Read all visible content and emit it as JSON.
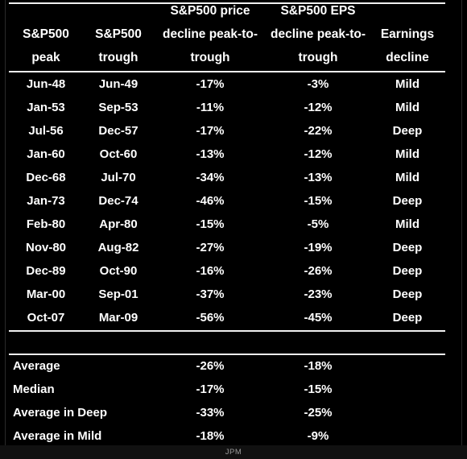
{
  "headers": {
    "peak": [
      "S&P500",
      "peak"
    ],
    "trough": [
      "S&P500",
      "trough"
    ],
    "price": [
      "S&P500 price",
      "decline peak-to-",
      "trough"
    ],
    "eps": [
      "S&P500 EPS",
      "decline peak-to-",
      "trough"
    ],
    "earnings": [
      "Earnings",
      "decline"
    ]
  },
  "rows": [
    {
      "peak": "Jun-48",
      "trough": "Jun-49",
      "price": "-17%",
      "eps": "-3%",
      "earnings": "Mild"
    },
    {
      "peak": "Jan-53",
      "trough": "Sep-53",
      "price": "-11%",
      "eps": "-12%",
      "earnings": "Mild"
    },
    {
      "peak": "Jul-56",
      "trough": "Dec-57",
      "price": "-17%",
      "eps": "-22%",
      "earnings": "Deep"
    },
    {
      "peak": "Jan-60",
      "trough": "Oct-60",
      "price": "-13%",
      "eps": "-12%",
      "earnings": "Mild"
    },
    {
      "peak": "Dec-68",
      "trough": "Jul-70",
      "price": "-34%",
      "eps": "-13%",
      "earnings": "Mild"
    },
    {
      "peak": "Jan-73",
      "trough": "Dec-74",
      "price": "-46%",
      "eps": "-15%",
      "earnings": "Deep"
    },
    {
      "peak": "Feb-80",
      "trough": "Apr-80",
      "price": "-15%",
      "eps": "-5%",
      "earnings": "Mild"
    },
    {
      "peak": "Nov-80",
      "trough": "Aug-82",
      "price": "-27%",
      "eps": "-19%",
      "earnings": "Deep"
    },
    {
      "peak": "Dec-89",
      "trough": "Oct-90",
      "price": "-16%",
      "eps": "-26%",
      "earnings": "Deep"
    },
    {
      "peak": "Mar-00",
      "trough": "Sep-01",
      "price": "-37%",
      "eps": "-23%",
      "earnings": "Deep"
    },
    {
      "peak": "Oct-07",
      "trough": "Mar-09",
      "price": "-56%",
      "eps": "-45%",
      "earnings": "Deep"
    }
  ],
  "summary": [
    {
      "label": "Average",
      "price": "-26%",
      "eps": "-18%"
    },
    {
      "label": "Median",
      "price": "-17%",
      "eps": "-15%"
    },
    {
      "label": "Average in Deep",
      "price": "-33%",
      "eps": "-25%"
    },
    {
      "label": "Average in Mild",
      "price": "-18%",
      "eps": "-9%"
    }
  ],
  "footer": "JPM",
  "colors": {
    "background": "#000000",
    "text": "#ffffff",
    "rule": "#f0f0f0",
    "footer_text": "#9a9a9a"
  }
}
